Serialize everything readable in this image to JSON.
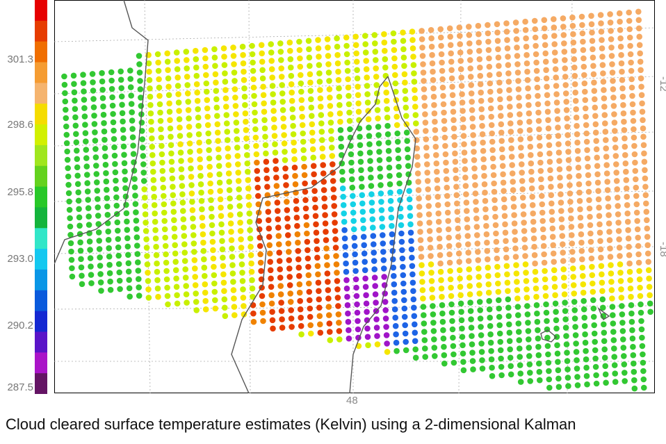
{
  "caption": {
    "line1": "Cloud cleared surface temperature estimates (Kelvin) using a 2-dimensional Kalman"
  },
  "colorbar": {
    "ticks": [
      "301.3",
      "298.6",
      "295.8",
      "293.0",
      "290.2",
      "287.5"
    ],
    "colors": [
      "#e60000",
      "#e63c00",
      "#f06e00",
      "#f59c32",
      "#f5b46e",
      "#f5dc00",
      "#d2f000",
      "#a0e61e",
      "#64d21e",
      "#28c828",
      "#14b43c",
      "#32e6c8",
      "#14c8f0",
      "#0a96e6",
      "#0a5adc",
      "#1428d2",
      "#5a14c8",
      "#aa14c8",
      "#641464"
    ]
  },
  "map": {
    "longitude_label": "48",
    "latitude_labels": [
      "-12",
      "-18"
    ],
    "land_temp_colors": {
      "hot": "#e63c00",
      "warm": "#f08200",
      "mild": "#f5aa64",
      "yellow": "#f5e600",
      "lime": "#c8f000",
      "green": "#32c832",
      "cyan": "#14d2e6",
      "blue": "#1e64e6",
      "purple": "#a014c8"
    }
  }
}
